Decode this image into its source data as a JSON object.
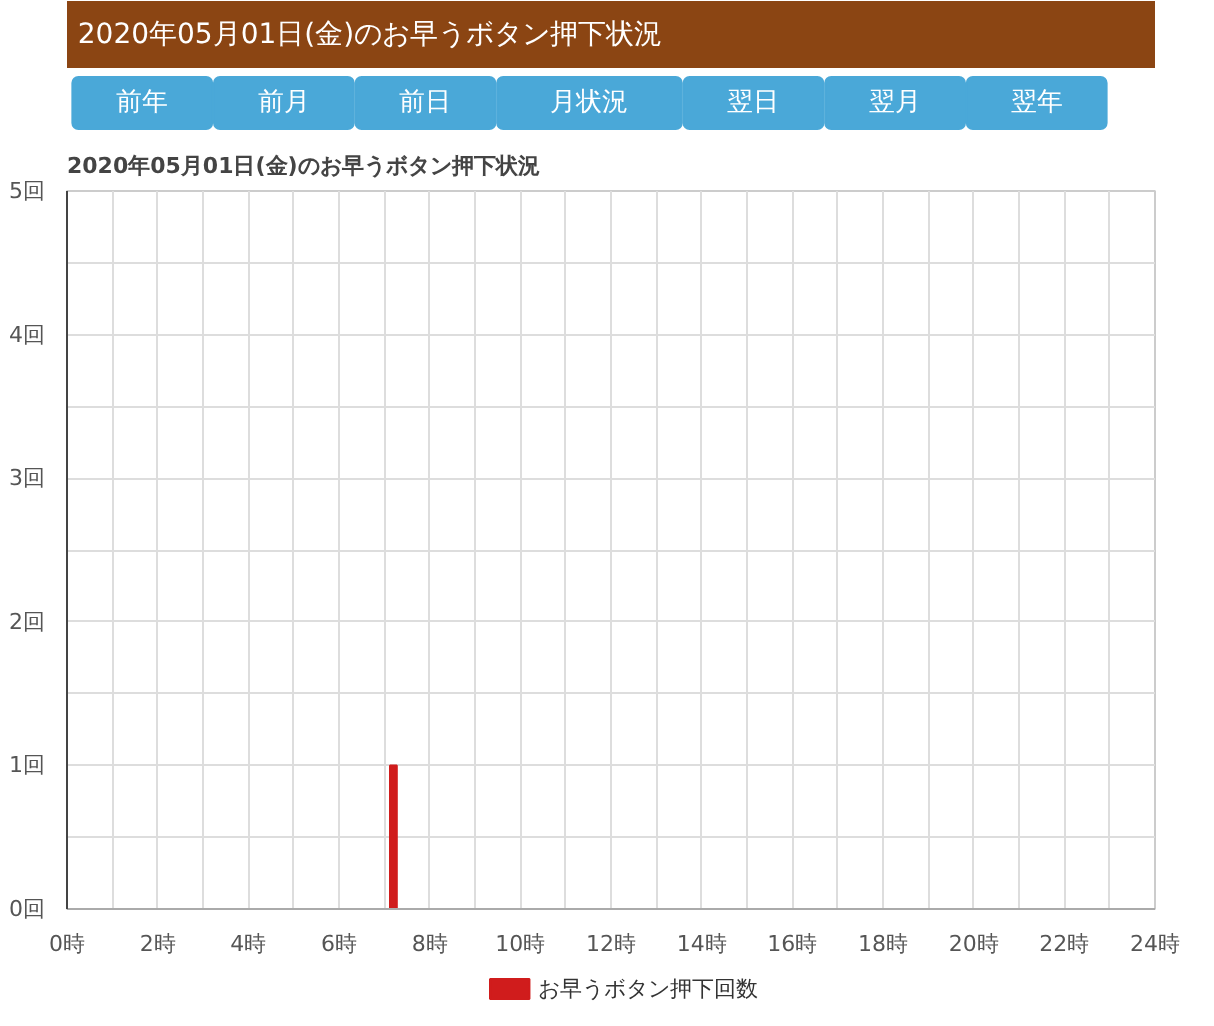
{
  "chart_data": {
    "type": "bar",
    "title": "2020年05月01日(金)のお早うボタン押下状況",
    "subtitle": "2020年05月01日(金)のお早うボタン押下状況",
    "annotations": [
      "前年",
      "前月",
      "前日",
      "月状況",
      "翌日",
      "翌月",
      "翌年"
    ],
    "x": [
      7.2
    ],
    "series": [
      {
        "name": "お早うボタン押下回数",
        "color": "#d01c1c",
        "values": [
          1
        ]
      }
    ],
    "xlim": [
      0,
      24
    ],
    "xticks": [
      {
        "value": 0,
        "label": "0時"
      },
      {
        "value": 1,
        "label": null
      },
      {
        "value": 2,
        "label": "2時"
      },
      {
        "value": 3,
        "label": null
      },
      {
        "value": 4,
        "label": "4時"
      },
      {
        "value": 5,
        "label": null
      },
      {
        "value": 6,
        "label": "6時"
      },
      {
        "value": 7,
        "label": null
      },
      {
        "value": 8,
        "label": "8時"
      },
      {
        "value": 9,
        "label": null
      },
      {
        "value": 10,
        "label": "10時"
      },
      {
        "value": 11,
        "label": null
      },
      {
        "value": 12,
        "label": "12時"
      },
      {
        "value": 13,
        "label": null
      },
      {
        "value": 14,
        "label": "14時"
      },
      {
        "value": 15,
        "label": null
      },
      {
        "value": 16,
        "label": "16時"
      },
      {
        "value": 17,
        "label": null
      },
      {
        "value": 18,
        "label": "18時"
      },
      {
        "value": 19,
        "label": null
      },
      {
        "value": 20,
        "label": "20時"
      },
      {
        "value": 21,
        "label": null
      },
      {
        "value": 22,
        "label": "22時"
      },
      {
        "value": 23,
        "label": null
      },
      {
        "value": 24,
        "label": "24時"
      }
    ],
    "ylim": [
      0,
      5
    ],
    "yticks": [
      {
        "value": 0,
        "label": "0回"
      },
      {
        "value": 0.5,
        "label": null
      },
      {
        "value": 1,
        "label": "1回"
      },
      {
        "value": 1.5,
        "label": null
      },
      {
        "value": 2,
        "label": "2回"
      },
      {
        "value": 2.5,
        "label": null
      },
      {
        "value": 3,
        "label": "3回"
      },
      {
        "value": 3.5,
        "label": null
      },
      {
        "value": 4,
        "label": "4回"
      },
      {
        "value": 4.5,
        "label": null
      },
      {
        "value": 5,
        "label": "5回"
      }
    ],
    "grid": true,
    "legend": "bottom"
  }
}
